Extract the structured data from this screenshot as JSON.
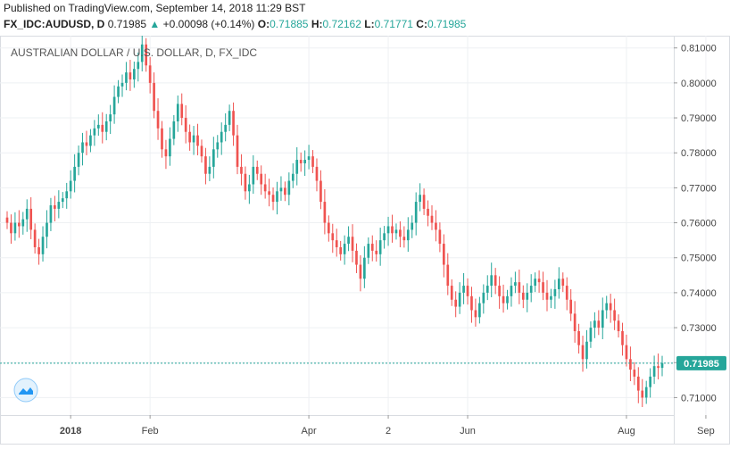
{
  "header": {
    "published": "Published on TradingView.com, September 14, 2018 11:29 BST",
    "symbol": "FX_IDC:AUDUSD, D",
    "last": "0.71985",
    "change": "+0.00098 (+0.14%)",
    "o_label": "O:",
    "o_value": "0.71885",
    "h_label": "H:",
    "h_value": "0.72162",
    "l_label": "L:",
    "l_value": "0.71771",
    "c_label": "C:",
    "c_value": "0.71985"
  },
  "colors": {
    "up": "#26a69a",
    "down": "#ef5350",
    "grid": "#eef0f3",
    "axis_text": "#444444",
    "price_line": "#26a69a"
  },
  "chart_data": {
    "type": "candlestick",
    "title": "AUSTRALIAN DOLLAR / U.S. DOLLAR, D, FX_IDC",
    "ylim": [
      0.705,
      0.8135
    ],
    "yticks": [
      "0.81000",
      "0.80000",
      "0.79000",
      "0.78000",
      "0.77000",
      "0.76000",
      "0.75000",
      "0.74000",
      "0.73000",
      "0.72000",
      "0.71000"
    ],
    "ytick_values": [
      0.81,
      0.8,
      0.79,
      0.78,
      0.77,
      0.76,
      0.75,
      0.74,
      0.73,
      0.72,
      0.71
    ],
    "xtick_labels": [
      "2018",
      "Feb",
      "Apr",
      "2",
      "Jun",
      "Aug",
      "Sep"
    ],
    "xtick_bar_index": [
      16,
      36,
      76,
      96,
      116,
      156,
      176
    ],
    "last_price": 0.71985,
    "last_price_label": "0.71985",
    "grid": true,
    "closes": [
      0.76,
      0.757,
      0.76,
      0.759,
      0.761,
      0.764,
      0.758,
      0.753,
      0.751,
      0.756,
      0.76,
      0.765,
      0.764,
      0.766,
      0.767,
      0.769,
      0.772,
      0.776,
      0.78,
      0.783,
      0.782,
      0.785,
      0.787,
      0.788,
      0.786,
      0.789,
      0.791,
      0.796,
      0.799,
      0.8,
      0.803,
      0.801,
      0.804,
      0.806,
      0.811,
      0.805,
      0.8,
      0.792,
      0.787,
      0.781,
      0.779,
      0.784,
      0.789,
      0.794,
      0.79,
      0.786,
      0.783,
      0.785,
      0.782,
      0.779,
      0.774,
      0.776,
      0.781,
      0.783,
      0.786,
      0.788,
      0.792,
      0.785,
      0.776,
      0.774,
      0.769,
      0.771,
      0.776,
      0.774,
      0.771,
      0.769,
      0.768,
      0.766,
      0.769,
      0.77,
      0.768,
      0.772,
      0.774,
      0.778,
      0.777,
      0.778,
      0.779,
      0.776,
      0.772,
      0.766,
      0.76,
      0.757,
      0.755,
      0.753,
      0.751,
      0.754,
      0.756,
      0.752,
      0.748,
      0.744,
      0.75,
      0.754,
      0.752,
      0.751,
      0.755,
      0.757,
      0.759,
      0.757,
      0.758,
      0.756,
      0.755,
      0.758,
      0.76,
      0.766,
      0.768,
      0.764,
      0.762,
      0.76,
      0.758,
      0.754,
      0.748,
      0.742,
      0.738,
      0.736,
      0.74,
      0.742,
      0.739,
      0.735,
      0.733,
      0.737,
      0.74,
      0.742,
      0.745,
      0.742,
      0.739,
      0.737,
      0.739,
      0.742,
      0.743,
      0.74,
      0.738,
      0.74,
      0.742,
      0.744,
      0.743,
      0.74,
      0.738,
      0.739,
      0.741,
      0.744,
      0.742,
      0.738,
      0.734,
      0.729,
      0.725,
      0.721,
      0.726,
      0.73,
      0.732,
      0.73,
      0.735,
      0.737,
      0.735,
      0.732,
      0.729,
      0.725,
      0.721,
      0.718,
      0.716,
      0.712,
      0.71,
      0.713,
      0.716,
      0.719,
      0.7185,
      0.71985
    ]
  }
}
